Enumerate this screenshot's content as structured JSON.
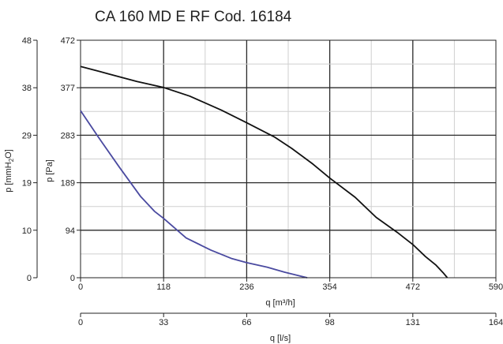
{
  "chart_data": {
    "type": "line",
    "title": "CA 160 MD E RF Cod. 16184",
    "x_axis": {
      "label": "q [m³/h]",
      "ticks": [
        "0",
        "118",
        "236",
        "354",
        "472",
        "590"
      ],
      "range": [
        0,
        590
      ]
    },
    "x2_axis": {
      "label": "q [l/s]",
      "ticks": [
        "0",
        "33",
        "66",
        "98",
        "131",
        "164"
      ]
    },
    "y_axis": {
      "label": "p [Pa]",
      "ticks": [
        "0",
        "94",
        "189",
        "283",
        "377",
        "472"
      ],
      "range": [
        0,
        472
      ]
    },
    "y2_axis": {
      "label_main": "p [mmH",
      "label_sub": "2",
      "label_tail": "O]",
      "ticks": [
        "0",
        "10",
        "19",
        "29",
        "38",
        "48"
      ]
    },
    "grid": true,
    "series": [
      {
        "color": "#111111",
        "points": [
          [
            0,
            420
          ],
          [
            40,
            405
          ],
          [
            80,
            390
          ],
          [
            118,
            378
          ],
          [
            155,
            361
          ],
          [
            200,
            333
          ],
          [
            236,
            308
          ],
          [
            275,
            280
          ],
          [
            300,
            257
          ],
          [
            330,
            226
          ],
          [
            354,
            198
          ],
          [
            390,
            160
          ],
          [
            420,
            120
          ],
          [
            450,
            90
          ],
          [
            472,
            66
          ],
          [
            490,
            42
          ],
          [
            505,
            25
          ],
          [
            515,
            10
          ],
          [
            521,
            0
          ]
        ]
      },
      {
        "color": "#4a4aa0",
        "points": [
          [
            0,
            332
          ],
          [
            25,
            280
          ],
          [
            55,
            220
          ],
          [
            85,
            162
          ],
          [
            105,
            132
          ],
          [
            118,
            118
          ],
          [
            150,
            79
          ],
          [
            185,
            55
          ],
          [
            215,
            38
          ],
          [
            236,
            30
          ],
          [
            265,
            21
          ],
          [
            290,
            11
          ],
          [
            307,
            5
          ],
          [
            322,
            0
          ]
        ]
      }
    ]
  }
}
